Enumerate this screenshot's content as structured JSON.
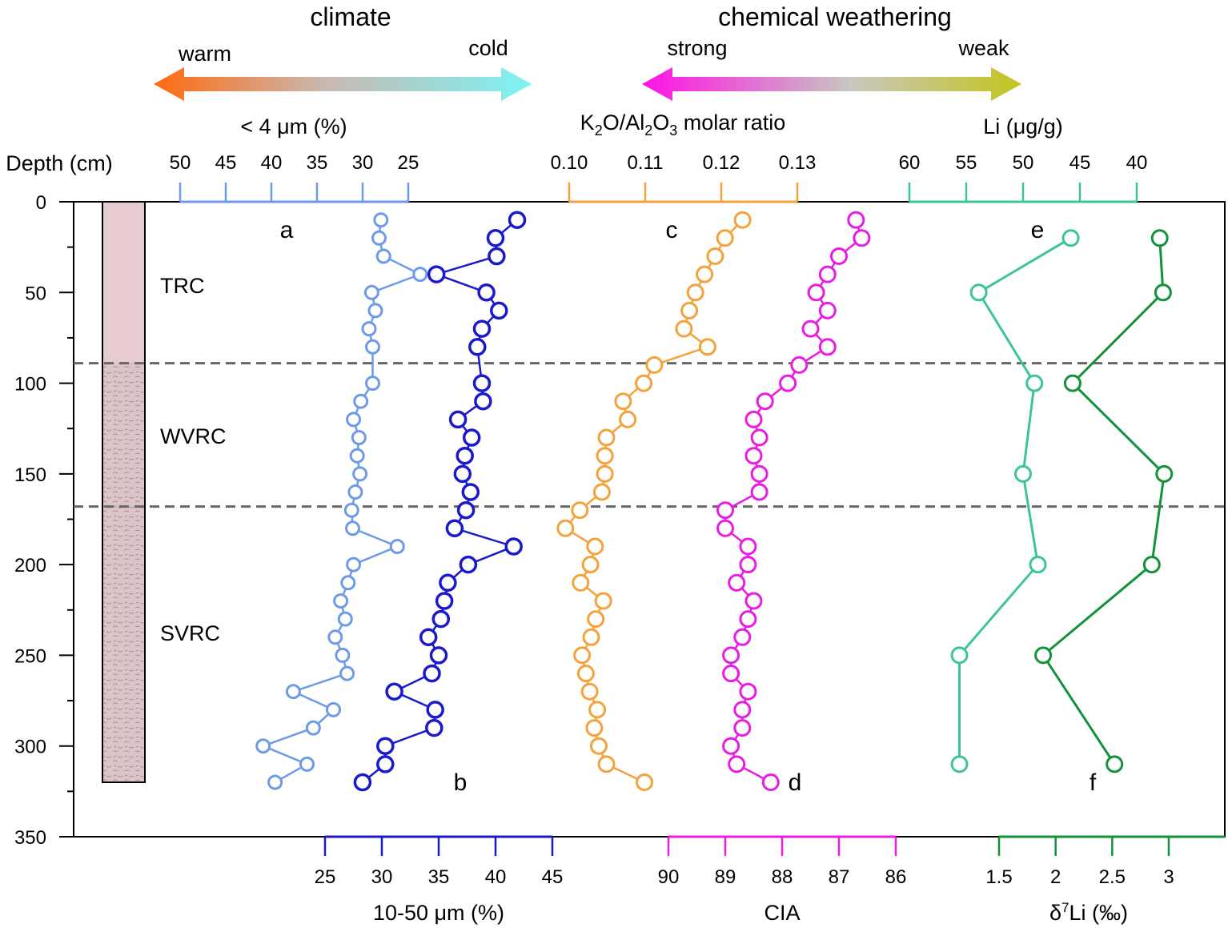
{
  "header": {
    "climate": {
      "title": "climate",
      "left": "warm",
      "right": "cold"
    },
    "weathering": {
      "title": "chemical weathering",
      "left": "strong",
      "right": "weak"
    }
  },
  "labels": {
    "depth": "Depth (cm)",
    "clay": "< 4 μm (%)",
    "k2o_parts": [
      "K",
      "2",
      "O/Al",
      "2",
      "O",
      "3",
      " molar ratio"
    ],
    "li": "Li (μg/g)",
    "silt": "10-50 μm (%)",
    "cia": "CIA",
    "d7li_parts": [
      "δ",
      "7",
      "Li (‰)"
    ]
  },
  "colors": {
    "clay": "#6e9ae8",
    "silt": "#1a1acc",
    "k2o": "#f4a23c",
    "cia": "#e81ce2",
    "li": "#3cc49a",
    "d7li": "#12923a",
    "warm": "#ff6a10",
    "cold": "#7cf4f4",
    "strong": "#ff10e6",
    "weak": "#c4c41c",
    "dashed": "#666666",
    "column": "#e6cccf"
  },
  "units": [
    {
      "label": "TRC",
      "top": 0,
      "bottom": 89
    },
    {
      "label": "WVRC",
      "top": 89,
      "bottom": 168
    },
    {
      "label": "SVRC",
      "top": 168,
      "bottom": 320
    }
  ],
  "chart_data": {
    "type": "scatter",
    "y_axis": {
      "label": "Depth (cm)",
      "range": [
        0,
        350
      ],
      "reversed": true,
      "ticks": [
        "0",
        "50",
        "100",
        "150",
        "200",
        "250",
        "300",
        "350"
      ]
    },
    "boundaries": [
      89,
      168
    ],
    "axes": [
      {
        "id": "clay",
        "label": "< 4 μm (%)",
        "position": "top",
        "ticks": [
          "50",
          "45",
          "40",
          "35",
          "30",
          "25"
        ]
      },
      {
        "id": "k2o",
        "label": "K2O/Al2O3 molar ratio",
        "position": "top",
        "ticks": [
          "0.10",
          "0.11",
          "0.12",
          "0.13"
        ]
      },
      {
        "id": "li",
        "label": "Li (μg/g)",
        "position": "top",
        "ticks": [
          "60",
          "55",
          "50",
          "45",
          "40"
        ]
      },
      {
        "id": "silt",
        "label": "10-50 μm (%)",
        "position": "bottom",
        "ticks": [
          "25",
          "30",
          "35",
          "40",
          "45"
        ]
      },
      {
        "id": "cia",
        "label": "CIA",
        "position": "bottom",
        "ticks": [
          "90",
          "89",
          "88",
          "87",
          "86"
        ]
      },
      {
        "id": "d7li",
        "label": "δ7Li (‰)",
        "position": "bottom",
        "ticks": [
          "1.5",
          "2",
          "2.5",
          "3"
        ]
      }
    ],
    "series": [
      {
        "name": "a",
        "axis": "clay",
        "points": [
          [
            28,
            10
          ],
          [
            28.2,
            20
          ],
          [
            27.7,
            30
          ],
          [
            23.7,
            40
          ],
          [
            29,
            50
          ],
          [
            28.6,
            60
          ],
          [
            29.3,
            70
          ],
          [
            28.9,
            80
          ],
          [
            28.9,
            100
          ],
          [
            30.2,
            110
          ],
          [
            31,
            120
          ],
          [
            30.4,
            130
          ],
          [
            30.6,
            140
          ],
          [
            30.3,
            150
          ],
          [
            30.8,
            160
          ],
          [
            31.2,
            170
          ],
          [
            31.1,
            180
          ],
          [
            26.2,
            190
          ],
          [
            31,
            200
          ],
          [
            31.6,
            210
          ],
          [
            32.4,
            220
          ],
          [
            31.9,
            230
          ],
          [
            33,
            240
          ],
          [
            32.2,
            250
          ],
          [
            31.7,
            260
          ],
          [
            37.6,
            270
          ],
          [
            33.2,
            280
          ],
          [
            35.4,
            290
          ],
          [
            40.9,
            300
          ],
          [
            36.1,
            310
          ],
          [
            39.6,
            320
          ]
        ]
      },
      {
        "name": "b",
        "axis": "silt",
        "points": [
          [
            41.9,
            10
          ],
          [
            40,
            20
          ],
          [
            40.1,
            30
          ],
          [
            34.8,
            40
          ],
          [
            39.2,
            50
          ],
          [
            40.3,
            60
          ],
          [
            38.8,
            70
          ],
          [
            38.4,
            80
          ],
          [
            38.8,
            100
          ],
          [
            38.9,
            110
          ],
          [
            36.7,
            120
          ],
          [
            37.9,
            130
          ],
          [
            37.3,
            140
          ],
          [
            37.1,
            150
          ],
          [
            37.8,
            160
          ],
          [
            37.4,
            170
          ],
          [
            36.4,
            180
          ],
          [
            41.6,
            190
          ],
          [
            37.6,
            200
          ],
          [
            35.8,
            210
          ],
          [
            35.5,
            220
          ],
          [
            35.2,
            230
          ],
          [
            34.1,
            240
          ],
          [
            35,
            250
          ],
          [
            34.4,
            260
          ],
          [
            31.1,
            270
          ],
          [
            34.7,
            280
          ],
          [
            34.6,
            290
          ],
          [
            30.3,
            300
          ],
          [
            30.3,
            310
          ],
          [
            28.3,
            320
          ]
        ]
      },
      {
        "name": "c",
        "axis": "k2o",
        "points": [
          [
            0.1228,
            10
          ],
          [
            0.1205,
            20
          ],
          [
            0.1192,
            30
          ],
          [
            0.1178,
            40
          ],
          [
            0.1166,
            50
          ],
          [
            0.1158,
            60
          ],
          [
            0.1151,
            70
          ],
          [
            0.1182,
            80
          ],
          [
            0.1112,
            90
          ],
          [
            0.1098,
            100
          ],
          [
            0.1071,
            110
          ],
          [
            0.1077,
            120
          ],
          [
            0.1049,
            130
          ],
          [
            0.1047,
            140
          ],
          [
            0.1047,
            150
          ],
          [
            0.1043,
            160
          ],
          [
            0.1014,
            170
          ],
          [
            0.0995,
            180
          ],
          [
            0.1034,
            190
          ],
          [
            0.1028,
            200
          ],
          [
            0.1015,
            210
          ],
          [
            0.1045,
            220
          ],
          [
            0.1035,
            230
          ],
          [
            0.1029,
            240
          ],
          [
            0.1017,
            250
          ],
          [
            0.1022,
            260
          ],
          [
            0.1027,
            270
          ],
          [
            0.1037,
            280
          ],
          [
            0.1033,
            290
          ],
          [
            0.1039,
            300
          ],
          [
            0.1049,
            310
          ],
          [
            0.1099,
            320
          ]
        ]
      },
      {
        "name": "d",
        "axis": "cia",
        "points": [
          [
            86.7,
            10
          ],
          [
            86.6,
            20
          ],
          [
            87,
            30
          ],
          [
            87.2,
            40
          ],
          [
            87.4,
            50
          ],
          [
            87.2,
            60
          ],
          [
            87.5,
            70
          ],
          [
            87.2,
            80
          ],
          [
            87.7,
            90
          ],
          [
            87.9,
            100
          ],
          [
            88.3,
            110
          ],
          [
            88.5,
            120
          ],
          [
            88.4,
            130
          ],
          [
            88.5,
            140
          ],
          [
            88.4,
            150
          ],
          [
            88.4,
            160
          ],
          [
            89,
            170
          ],
          [
            89,
            180
          ],
          [
            88.6,
            190
          ],
          [
            88.6,
            200
          ],
          [
            88.8,
            210
          ],
          [
            88.5,
            220
          ],
          [
            88.6,
            230
          ],
          [
            88.7,
            240
          ],
          [
            88.9,
            250
          ],
          [
            88.9,
            260
          ],
          [
            88.6,
            270
          ],
          [
            88.7,
            280
          ],
          [
            88.7,
            290
          ],
          [
            88.9,
            300
          ],
          [
            88.8,
            310
          ],
          [
            88.2,
            320
          ]
        ]
      },
      {
        "name": "e",
        "axis": "li",
        "points": [
          [
            45.8,
            20
          ],
          [
            53.9,
            50
          ],
          [
            49,
            100
          ],
          [
            50,
            150
          ],
          [
            48.7,
            200
          ],
          [
            55.6,
            250
          ],
          [
            55.6,
            310
          ]
        ]
      },
      {
        "name": "f",
        "axis": "d7li",
        "points": [
          [
            2.92,
            20
          ],
          [
            2.95,
            50
          ],
          [
            2.15,
            100
          ],
          [
            2.96,
            150
          ],
          [
            2.85,
            200
          ],
          [
            1.89,
            250
          ],
          [
            2.52,
            310
          ]
        ]
      }
    ]
  }
}
